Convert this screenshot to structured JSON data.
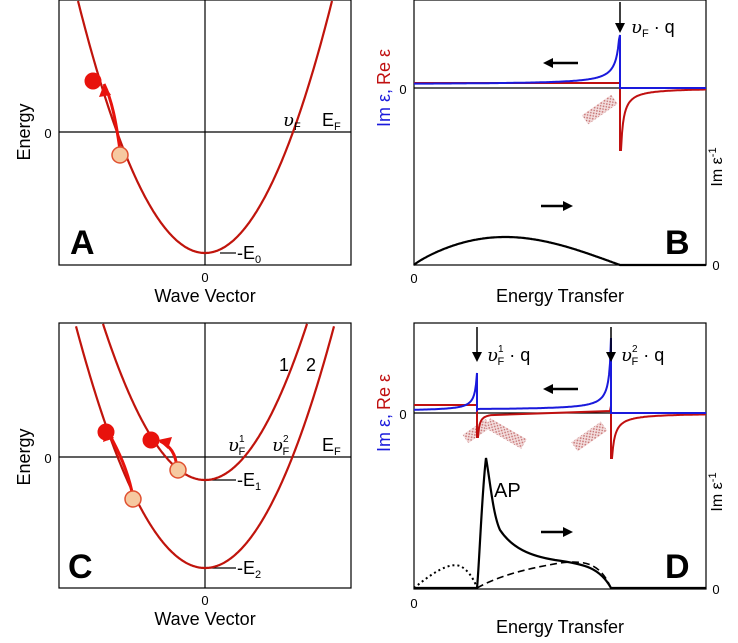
{
  "colors": {
    "band": "#c0140c",
    "im": "#1a1adc",
    "re": "#c01010",
    "dot_filled": "#e8120c",
    "dot_open_fill": "#f6c9a0",
    "dot_open_stroke": "#e05030",
    "arrow": "#e8120c",
    "axis": "#000000",
    "hatch": "#d48a8a"
  },
  "panel_a": {
    "letter": "A",
    "ylabel": "Energy",
    "xlabel": "Wave Vector",
    "y_zero": "0",
    "x_zero": "0",
    "vf": "υ",
    "vf_sub": "F",
    "ef": "E",
    "ef_sub": "F",
    "e0": "-E",
    "e0_sub": "0"
  },
  "panel_b": {
    "letter": "B",
    "xlabel": "Energy Transfer",
    "x_zero": "0",
    "y_zero_left": "0",
    "y_zero_right": "0",
    "im_label": "Im ε,",
    "re_label": "Re ε",
    "right_label": "Im ε",
    "right_sup": "-1",
    "vfq": "υ",
    "vfq_sub": "F",
    "vfq_tail": " · q"
  },
  "panel_c": {
    "letter": "C",
    "ylabel": "Energy",
    "xlabel": "Wave Vector",
    "y_zero": "0",
    "x_zero": "0",
    "band1": "1",
    "band2": "2",
    "vf1": "υ",
    "vf1_sup": "1",
    "vf1_sub": "F",
    "vf2": "υ",
    "vf2_sup": "2",
    "vf2_sub": "F",
    "ef": "E",
    "ef_sub": "F",
    "e1": "-E",
    "e1_sub": "1",
    "e2": "-E",
    "e2_sub": "2"
  },
  "panel_d": {
    "letter": "D",
    "xlabel": "Energy Transfer",
    "x_zero": "0",
    "y_zero_left": "0",
    "y_zero_right": "0",
    "im_label": "Im ε,",
    "re_label": "Re ε",
    "right_label": "Im ε",
    "right_sup": "-1",
    "vfq1": "υ",
    "vfq1_sup": "1",
    "vfq1_sub": "F",
    "vfq1_tail": " · q",
    "vfq2": "υ",
    "vfq2_sup": "2",
    "vfq2_sub": "F",
    "vfq2_tail": " · q",
    "ap": "AP"
  }
}
